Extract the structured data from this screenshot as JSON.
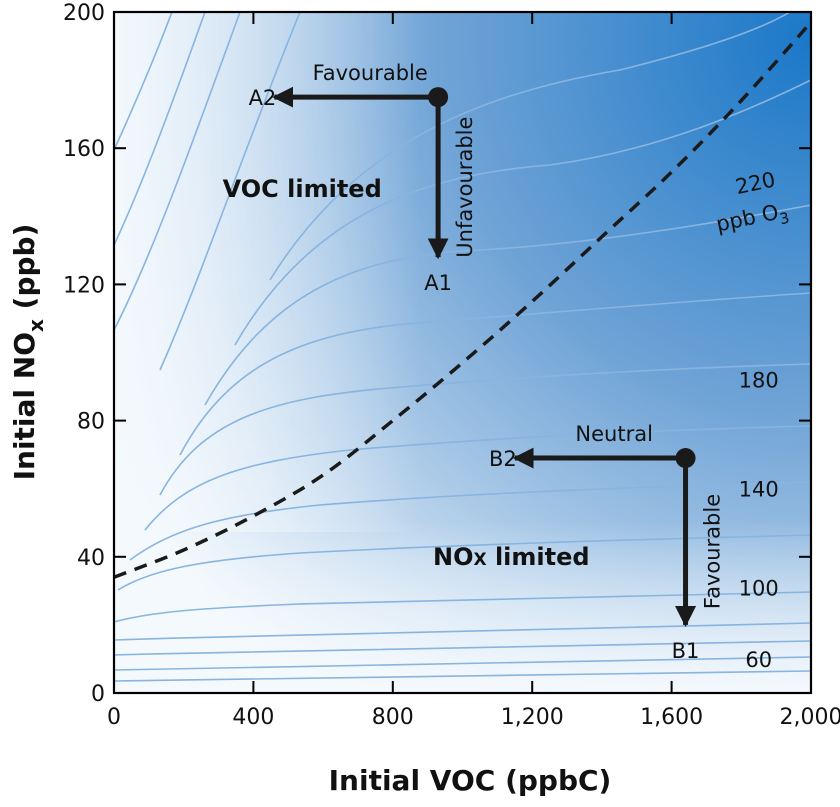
{
  "chart_data": {
    "type": "contour",
    "title": "",
    "xlabel": "Initial VOC (ppbC)",
    "ylabel_main": "Initial NO",
    "ylabel_sub": "x",
    "ylabel_unit": "(ppb)",
    "xlim": [
      0,
      2000
    ],
    "ylim": [
      0,
      200
    ],
    "x_ticks": [
      0,
      400,
      800,
      1200,
      1600,
      2000
    ],
    "x_tick_labels": [
      "0",
      "400",
      "800",
      "1,200",
      "1,600",
      "2,000"
    ],
    "y_ticks": [
      0,
      40,
      80,
      120,
      160,
      200
    ],
    "y_tick_labels": [
      "0",
      "40",
      "80",
      "120",
      "160",
      "200"
    ],
    "contour_labels": [
      {
        "text": "60",
        "x": 1850,
        "y": 10
      },
      {
        "text": "100",
        "x": 1850,
        "y": 31
      },
      {
        "text": "140",
        "x": 1850,
        "y": 60
      },
      {
        "text": "180",
        "x": 1850,
        "y": 92
      },
      {
        "text": "220",
        "x": 1840,
        "y": 150
      }
    ],
    "contour_units_label": {
      "main": "ppb O",
      "sub": "3",
      "x": 1830,
      "y": 140
    },
    "ridge_line": [
      {
        "x": 0,
        "y": 34
      },
      {
        "x": 200,
        "y": 42
      },
      {
        "x": 400,
        "y": 52
      },
      {
        "x": 600,
        "y": 64
      },
      {
        "x": 800,
        "y": 80
      },
      {
        "x": 1000,
        "y": 97
      },
      {
        "x": 1200,
        "y": 115
      },
      {
        "x": 1400,
        "y": 134
      },
      {
        "x": 1600,
        "y": 153
      },
      {
        "x": 1800,
        "y": 174
      },
      {
        "x": 2000,
        "y": 197
      }
    ],
    "region_labels": {
      "voc_limited": {
        "text": "VOC limited",
        "x": 540,
        "y": 148
      },
      "nox_limited": {
        "main": "NO",
        "sub": "X",
        "rest": " limited",
        "x": 1140,
        "y": 40
      }
    },
    "points": [
      {
        "name": "A",
        "x": 930,
        "y": 175
      },
      {
        "name": "B",
        "x": 1640,
        "y": 69
      }
    ],
    "arrows": [
      {
        "from": "A",
        "to_x": 460,
        "to_y": 175,
        "end_label": "A2",
        "caption": "Favourable",
        "caption_dir": "horizontal"
      },
      {
        "from": "A",
        "to_x": 930,
        "to_y": 128,
        "end_label": "A1",
        "caption": "Unfavourable",
        "caption_dir": "vertical"
      },
      {
        "from": "B",
        "to_x": 1150,
        "to_y": 69,
        "end_label": "B2",
        "caption": "Neutral",
        "caption_dir": "horizontal"
      },
      {
        "from": "B",
        "to_x": 1640,
        "to_y": 20,
        "end_label": "B1",
        "caption": "Favourable",
        "caption_dir": "vertical"
      }
    ],
    "colors": {
      "fill_light": "#f4f9fd",
      "fill_mid": "#6fa3d6",
      "fill_dark": "#1b78c8",
      "contour_line": "#88b4e0",
      "ridge": "#1a1a1a",
      "arrow": "#1a1a1a"
    }
  }
}
